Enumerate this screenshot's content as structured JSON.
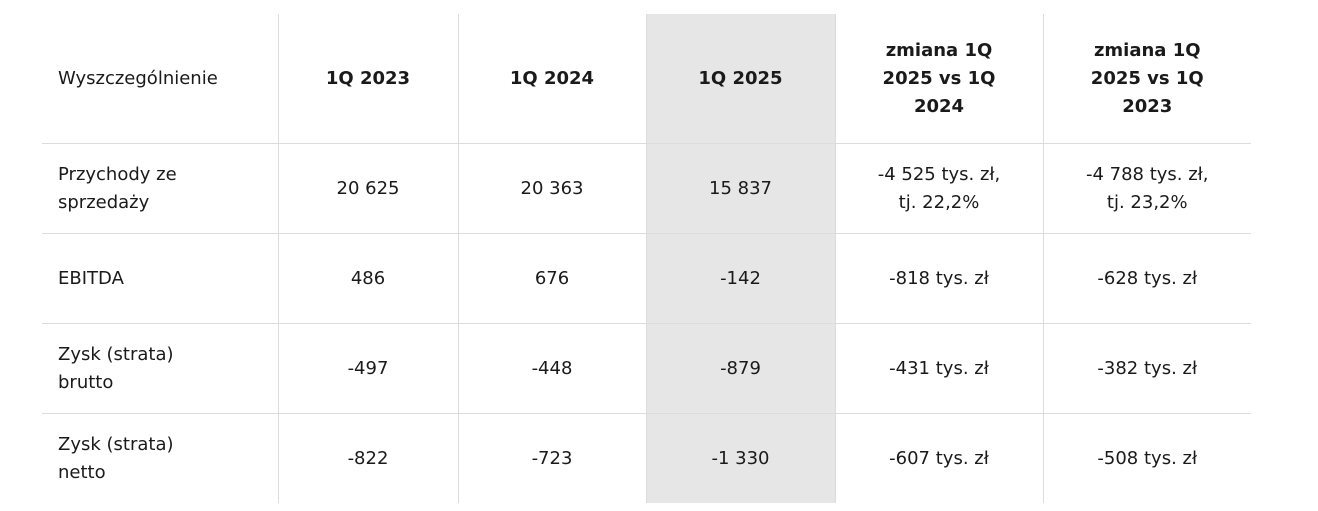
{
  "table": {
    "header": [
      "Wyszczególnienie",
      "1Q 2023",
      "1Q 2024",
      "1Q 2025",
      "zmiana 1Q 2025 vs 1Q 2024",
      "zmiana 1Q 2025 vs 1Q 2023"
    ],
    "rows": [
      [
        "Przychody ze sprzedaży",
        "20 625",
        "20 363",
        "15 837",
        "-4 525 tys. zł, tj. 22,2%",
        "-4 788 tys. zł, tj. 23,2%"
      ],
      [
        "EBITDA",
        "486",
        "676",
        "-142",
        "-818 tys. zł",
        "-628 tys. zł"
      ],
      [
        "Zysk (strata) brutto",
        "-497",
        "-448",
        "-879",
        "-431 tys. zł",
        "-382 tys. zł"
      ],
      [
        "Zysk (strata) netto",
        "-822",
        "-723",
        "-1 330",
        "-607 tys. zł",
        "-508 tys. zł"
      ]
    ]
  }
}
